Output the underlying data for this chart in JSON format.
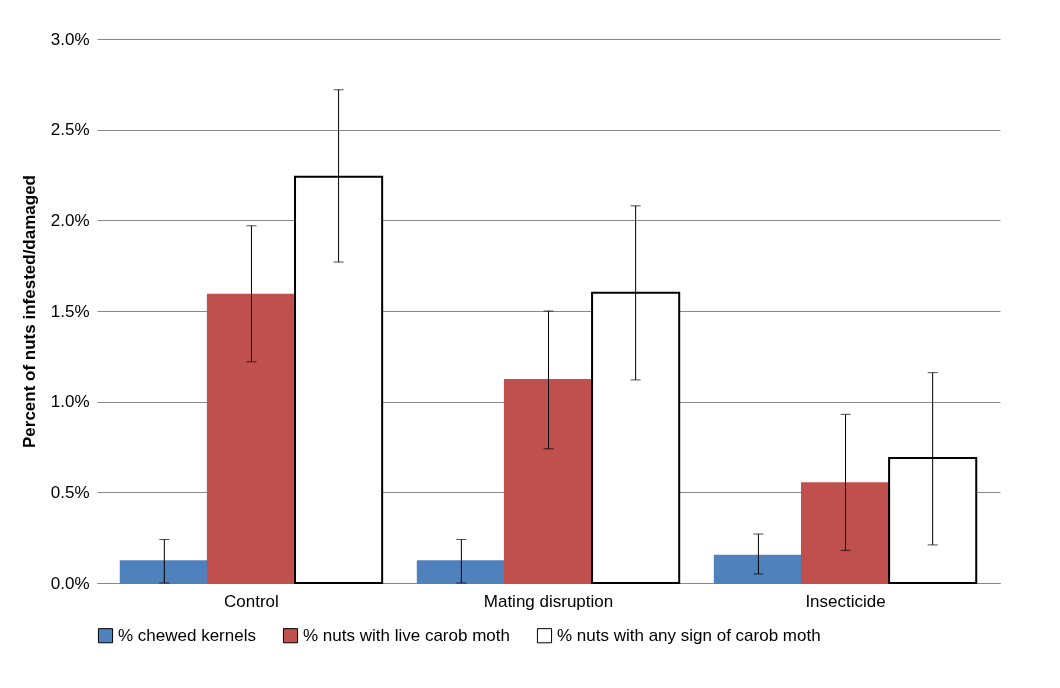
{
  "chart_data": {
    "type": "bar",
    "ylabel": "Percent of nuts infested/damaged",
    "categories": [
      "Control",
      "Mating disruption",
      "Insecticide"
    ],
    "series": [
      {
        "name": "% chewed kernels",
        "color": "#4f81bd",
        "values": [
          0.12,
          0.12,
          0.15
        ],
        "errors": [
          [
            0,
            0.24
          ],
          [
            0,
            0.24
          ],
          [
            0.05,
            0.27
          ]
        ]
      },
      {
        "name": "% nuts with live carob moth",
        "color": "#c0504d",
        "values": [
          1.59,
          1.12,
          0.55
        ],
        "errors": [
          [
            1.22,
            1.97
          ],
          [
            0.74,
            1.5
          ],
          [
            0.18,
            0.93
          ]
        ]
      },
      {
        "name": "% nuts with any sign of carob moth",
        "color": "#ffffff",
        "values": [
          2.24,
          1.6,
          0.69
        ],
        "errors": [
          [
            1.77,
            2.72
          ],
          [
            1.12,
            2.08
          ],
          [
            0.21,
            1.16
          ]
        ]
      }
    ],
    "ylim": [
      0,
      3
    ],
    "yticks": [
      {
        "value": 0,
        "label": "0.0%"
      },
      {
        "value": 0.5,
        "label": "0.5%"
      },
      {
        "value": 1,
        "label": "1.0%"
      },
      {
        "value": 1.5,
        "label": "1.5%"
      },
      {
        "value": 2,
        "label": "2.0%"
      },
      {
        "value": 2.5,
        "label": "2.5%"
      },
      {
        "value": 3,
        "label": "3.0%"
      }
    ],
    "grid": "y",
    "legend": "bottom"
  }
}
